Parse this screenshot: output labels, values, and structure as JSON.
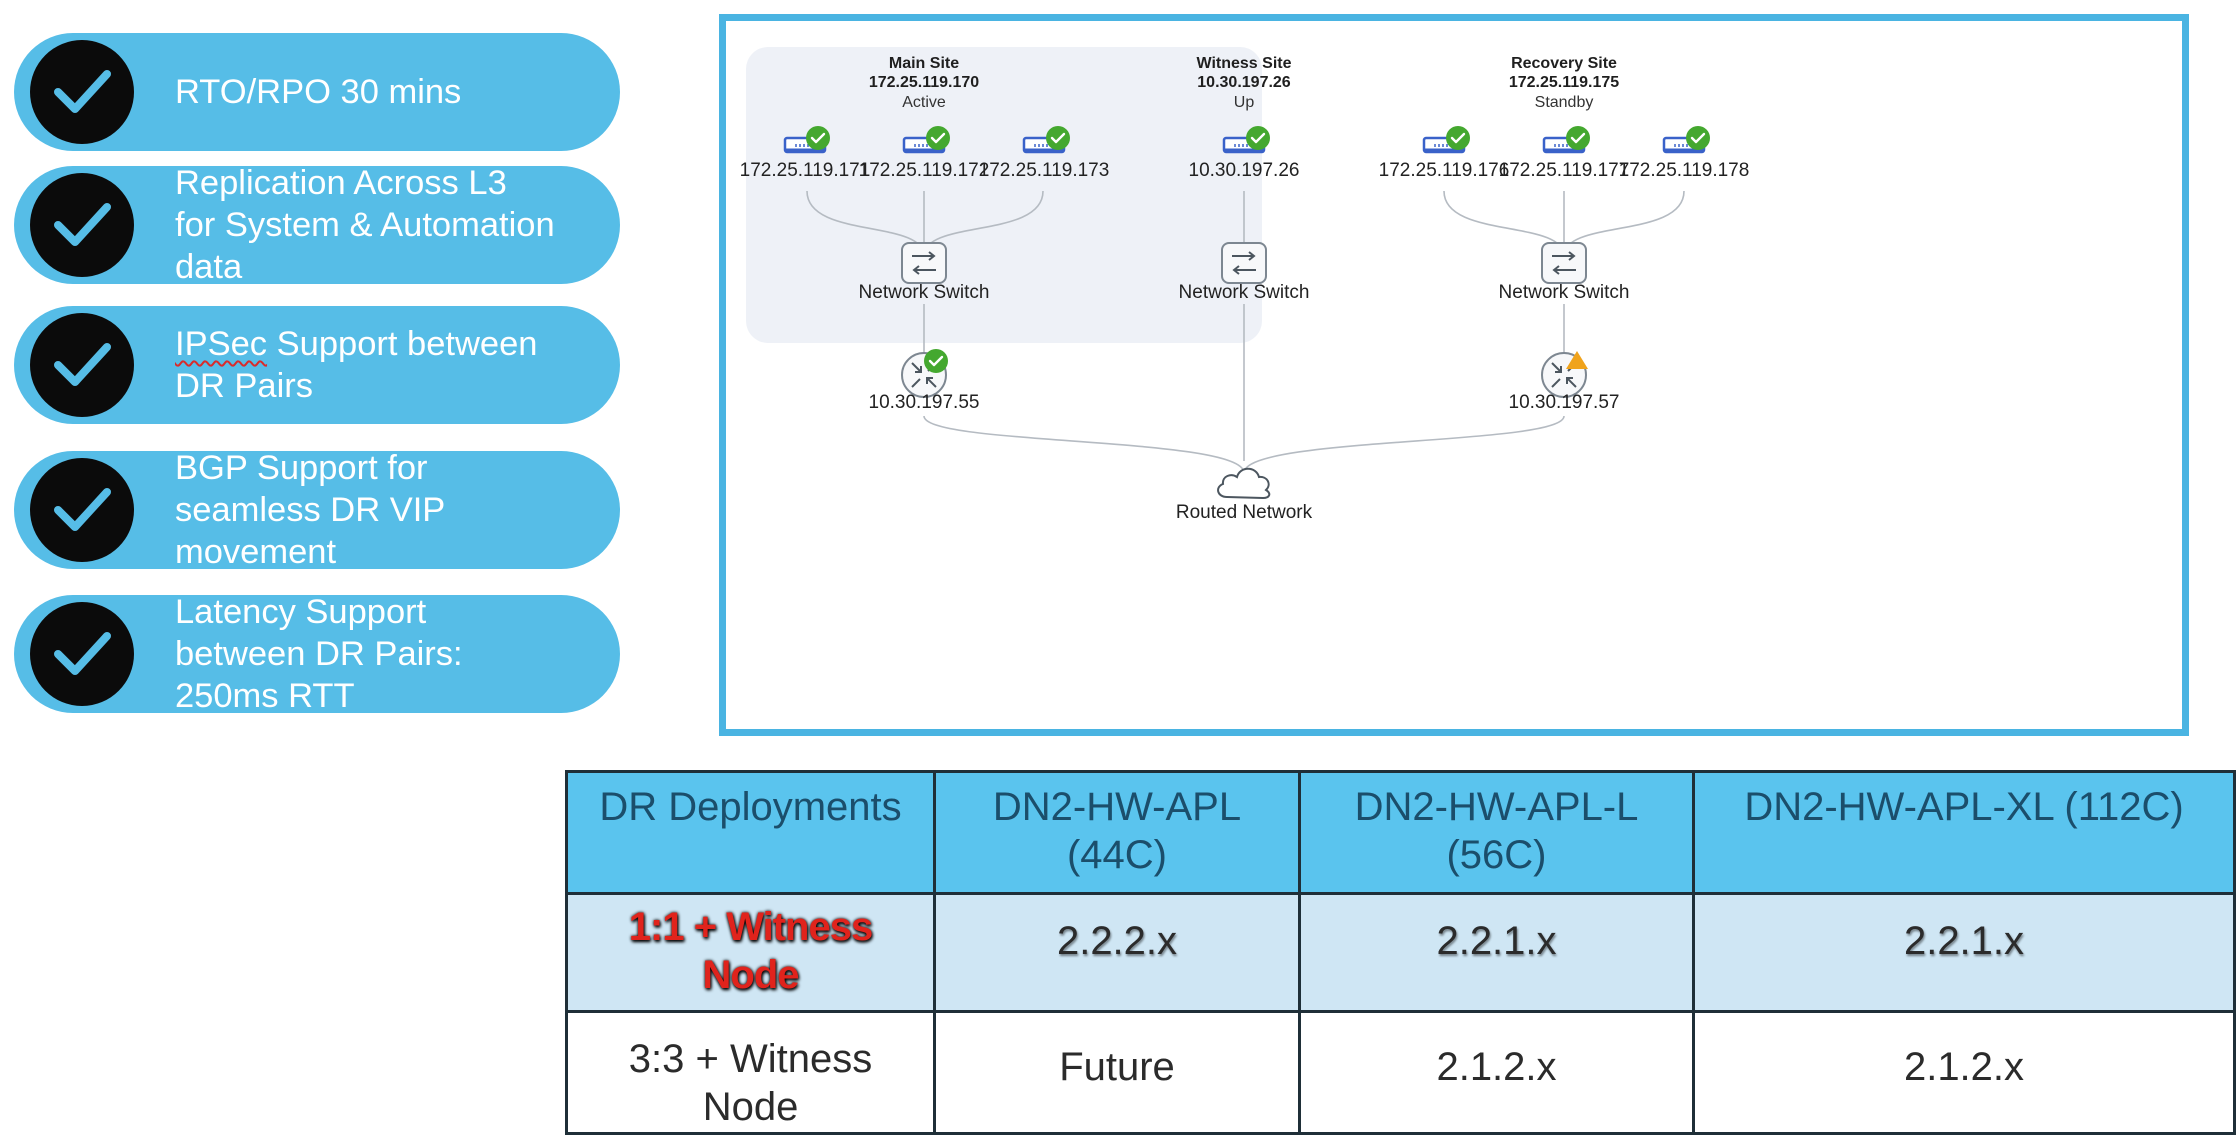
{
  "features": [
    {
      "text": "RTO/RPO 30 mins"
    },
    {
      "text": "Replication Across L3\nfor System & Automation\ndata"
    },
    {
      "prefix": "IPSec",
      "rest": " Support between\nDR Pairs"
    },
    {
      "text": "BGP Support for\nseamless DR VIP\nmovement"
    },
    {
      "text": "Latency Support\nbetween DR Pairs:\n250ms RTT"
    }
  ],
  "diagram": {
    "sites": [
      {
        "name": "Main Site",
        "ip": "172.25.119.170",
        "status": "Active"
      },
      {
        "name": "Witness Site",
        "ip": "10.30.197.26",
        "status": "Up"
      },
      {
        "name": "Recovery Site",
        "ip": "172.25.119.175",
        "status": "Standby"
      }
    ],
    "nodes": [
      "172.25.119.171",
      "172.25.119.172",
      "172.25.119.173",
      "10.30.197.26",
      "172.25.119.176",
      "172.25.119.177",
      "172.25.119.178"
    ],
    "switch_label": "Network Switch",
    "routers": [
      "10.30.197.55",
      "10.30.197.57"
    ],
    "network_label": "Routed Network",
    "colors": {
      "ok": "#44a82f",
      "warn": "#f0a31c",
      "server": "#3a62c9"
    }
  },
  "table": {
    "headers": [
      "DR Deployments",
      "DN2-HW-APL\n(44C)",
      "DN2-HW-APL-L\n(56C)",
      "DN2-HW-APL-XL (112C)"
    ],
    "rows": [
      [
        "1:1 + Witness\nNode",
        "2.2.2.x",
        "2.2.1.x",
        "2.2.1.x"
      ],
      [
        "3:3 + Witness\nNode",
        "Future",
        "2.1.2.x",
        "2.1.2.x"
      ]
    ]
  }
}
